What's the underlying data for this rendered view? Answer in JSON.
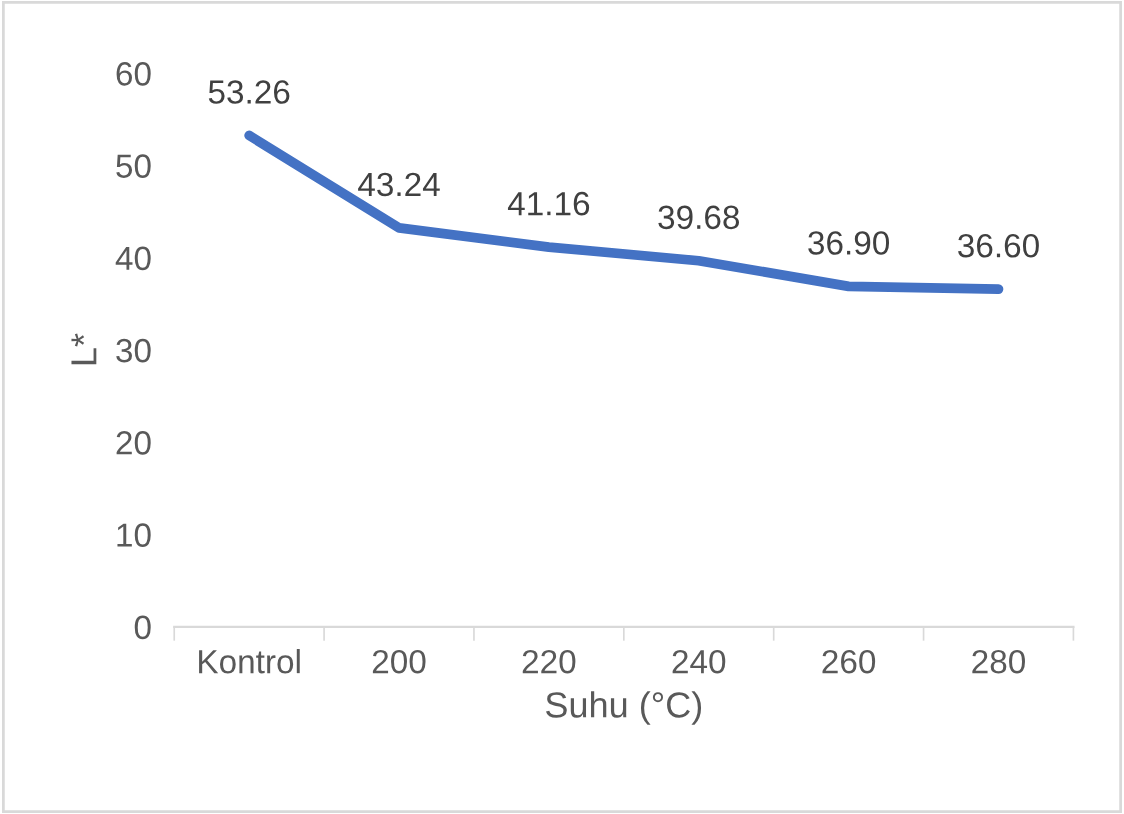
{
  "chart_data": {
    "type": "line",
    "xlabel": "Suhu (°C)",
    "ylabel": "L*",
    "categories": [
      "Kontrol",
      "200",
      "220",
      "240",
      "260",
      "280"
    ],
    "series": [
      {
        "color": "#4472c4",
        "values": [
          53.26,
          43.24,
          41.16,
          39.68,
          36.9,
          36.6
        ],
        "value_labels": [
          "53.26",
          "43.24",
          "41.16",
          "39.68",
          "36.90",
          "36.60"
        ]
      }
    ],
    "ylim": [
      0,
      60
    ],
    "yticks": [
      0,
      10,
      20,
      30,
      40,
      50,
      60
    ],
    "grid": false,
    "legend": false,
    "marker": "none",
    "line_style": "solid"
  }
}
